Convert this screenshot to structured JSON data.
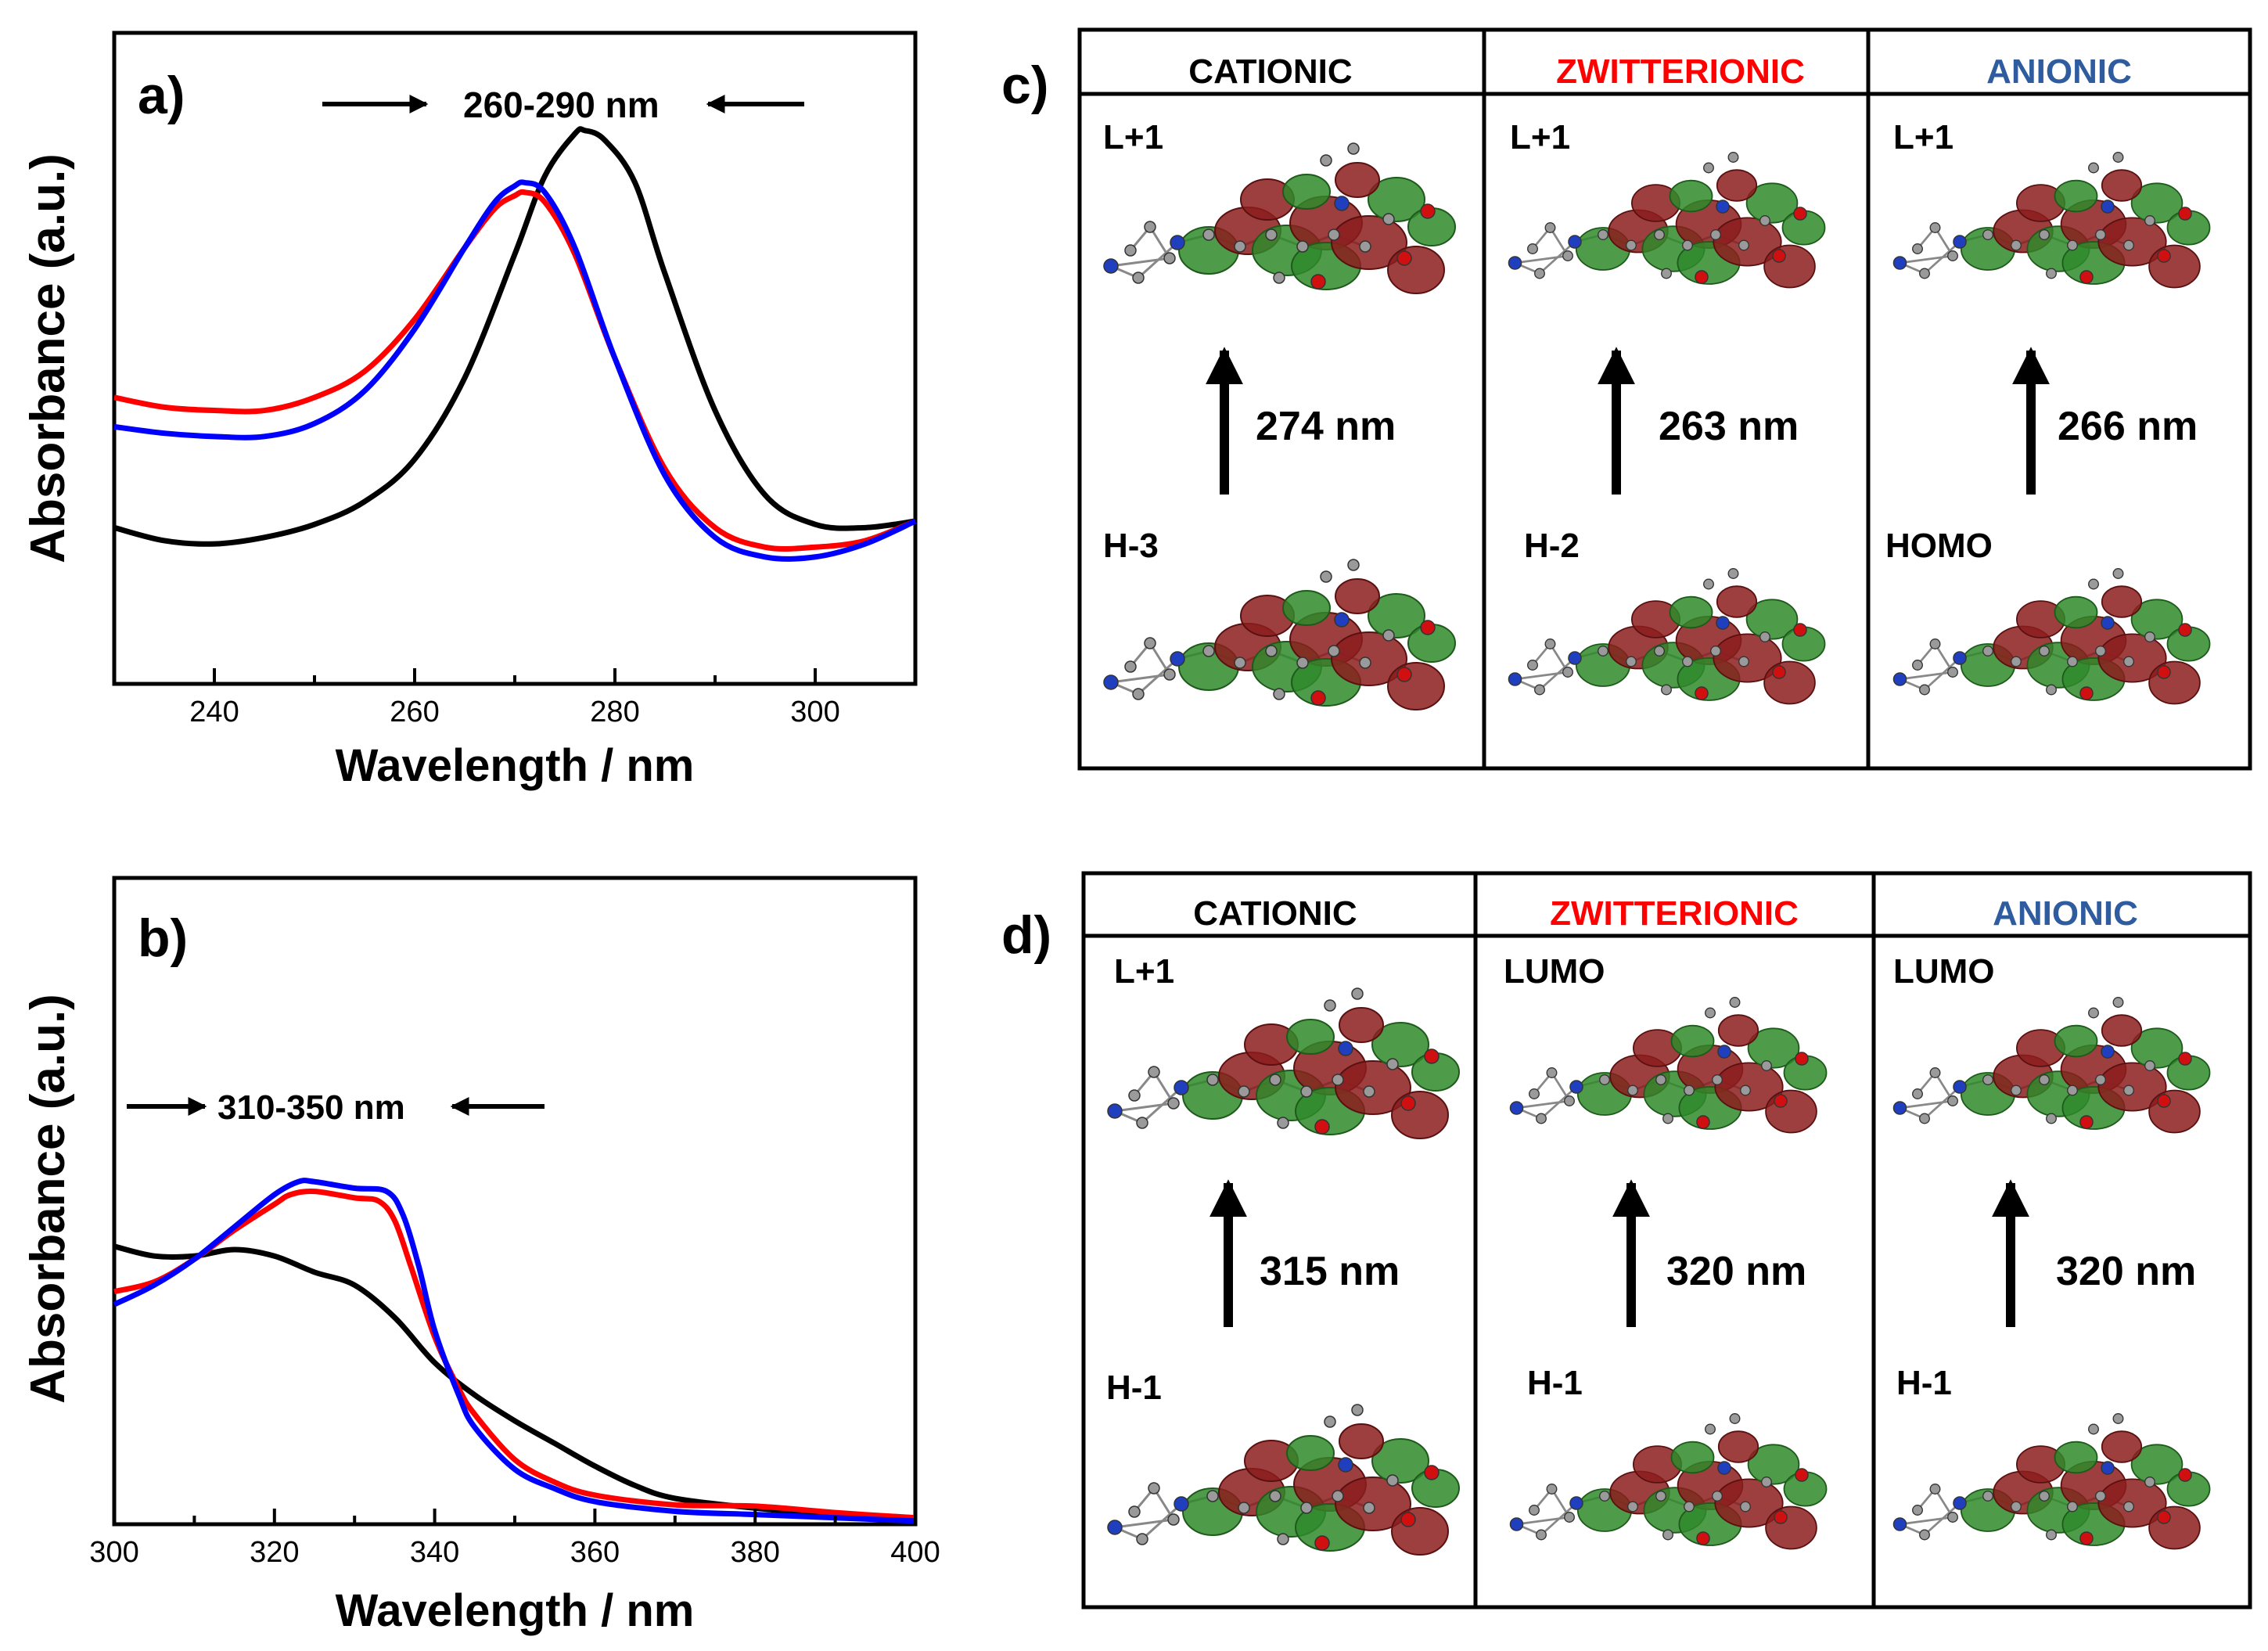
{
  "chart_data": [
    {
      "panel": "a)",
      "type": "line",
      "title": "",
      "annotation": "260-290 nm",
      "xlabel": "Wavelength / nm",
      "ylabel": "Absorbance (a.u.)",
      "xlim": [
        230,
        310
      ],
      "ylim": [
        0,
        1
      ],
      "xticks": [
        240,
        260,
        280,
        300
      ],
      "yticks_shown": false,
      "grid": false,
      "legend": "none",
      "series": [
        {
          "name": "black",
          "color": "#000000",
          "x": [
            230,
            235,
            240,
            245,
            250,
            255,
            260,
            265,
            270,
            273,
            276,
            277,
            279,
            282,
            285,
            290,
            295,
            300,
            305,
            310
          ],
          "y": [
            0.24,
            0.22,
            0.215,
            0.225,
            0.245,
            0.28,
            0.345,
            0.47,
            0.66,
            0.78,
            0.845,
            0.85,
            0.835,
            0.77,
            0.63,
            0.42,
            0.29,
            0.245,
            0.24,
            0.25
          ]
        },
        {
          "name": "red",
          "color": "#ff0000",
          "x": [
            230,
            235,
            240,
            245,
            250,
            255,
            260,
            265,
            268,
            270,
            271,
            273,
            276,
            280,
            285,
            290,
            295,
            300,
            305,
            310
          ],
          "y": [
            0.44,
            0.425,
            0.42,
            0.42,
            0.44,
            0.48,
            0.56,
            0.67,
            0.73,
            0.75,
            0.755,
            0.74,
            0.66,
            0.5,
            0.33,
            0.24,
            0.21,
            0.21,
            0.22,
            0.25
          ]
        },
        {
          "name": "blue",
          "color": "#0000ff",
          "x": [
            230,
            235,
            240,
            245,
            250,
            255,
            260,
            265,
            268,
            270,
            271,
            273,
            276,
            280,
            285,
            290,
            295,
            300,
            305,
            310
          ],
          "y": [
            0.395,
            0.385,
            0.38,
            0.38,
            0.4,
            0.45,
            0.545,
            0.67,
            0.74,
            0.765,
            0.77,
            0.755,
            0.67,
            0.5,
            0.32,
            0.225,
            0.195,
            0.195,
            0.215,
            0.25
          ]
        }
      ]
    },
    {
      "panel": "b)",
      "type": "line",
      "title": "",
      "annotation": "310-350 nm",
      "xlabel": "Wavelength / nm",
      "ylabel": "Absorbance (a.u.)",
      "xlim": [
        300,
        400
      ],
      "ylim": [
        0,
        1
      ],
      "xticks": [
        300,
        320,
        340,
        360,
        380,
        400
      ],
      "yticks_shown": false,
      "grid": false,
      "legend": "none",
      "series": [
        {
          "name": "black",
          "color": "#000000",
          "x": [
            300,
            305,
            310,
            315,
            320,
            325,
            330,
            335,
            340,
            345,
            350,
            355,
            360,
            365,
            370,
            380,
            390,
            400
          ],
          "y": [
            0.43,
            0.415,
            0.415,
            0.425,
            0.415,
            0.39,
            0.37,
            0.32,
            0.25,
            0.2,
            0.16,
            0.125,
            0.09,
            0.06,
            0.04,
            0.025,
            0.015,
            0.01
          ]
        },
        {
          "name": "red",
          "color": "#ff0000",
          "x": [
            300,
            305,
            310,
            315,
            320,
            322,
            325,
            330,
            333,
            335,
            337,
            340,
            343,
            345,
            350,
            355,
            360,
            370,
            380,
            390,
            400
          ],
          "y": [
            0.36,
            0.375,
            0.41,
            0.455,
            0.495,
            0.51,
            0.515,
            0.505,
            0.5,
            0.47,
            0.4,
            0.29,
            0.21,
            0.17,
            0.1,
            0.065,
            0.045,
            0.03,
            0.028,
            0.018,
            0.01
          ]
        },
        {
          "name": "blue",
          "color": "#0000ff",
          "x": [
            300,
            305,
            310,
            315,
            320,
            323,
            325,
            330,
            334,
            336,
            338,
            340,
            343,
            345,
            350,
            355,
            360,
            370,
            380,
            390,
            400
          ],
          "y": [
            0.34,
            0.37,
            0.41,
            0.46,
            0.51,
            0.53,
            0.53,
            0.52,
            0.515,
            0.48,
            0.4,
            0.3,
            0.2,
            0.15,
            0.085,
            0.055,
            0.035,
            0.02,
            0.015,
            0.01,
            0.005
          ]
        }
      ]
    }
  ],
  "panel_c": {
    "label": "c)",
    "columns": [
      {
        "header": "CATIONIC",
        "header_color": "#000000",
        "upper_orbital": "L+1",
        "lower_orbital": "H-3",
        "wavelength": "274 nm"
      },
      {
        "header": "ZWITTERIONIC",
        "header_color": "#ff0000",
        "upper_orbital": "L+1",
        "lower_orbital": "H-2",
        "wavelength": "263 nm"
      },
      {
        "header": "ANIONIC",
        "header_color": "#2e5c9e",
        "upper_orbital": "L+1",
        "lower_orbital": "HOMO",
        "wavelength": "266 nm"
      }
    ]
  },
  "panel_d": {
    "label": "d)",
    "columns": [
      {
        "header": "CATIONIC",
        "header_color": "#000000",
        "upper_orbital": "L+1",
        "lower_orbital": "H-1",
        "wavelength": "315 nm"
      },
      {
        "header": "ZWITTERIONIC",
        "header_color": "#ff0000",
        "upper_orbital": "LUMO",
        "lower_orbital": "H-1",
        "wavelength": "320 nm"
      },
      {
        "header": "ANIONIC",
        "header_color": "#2e5c9e",
        "upper_orbital": "LUMO",
        "lower_orbital": "H-1",
        "wavelength": "320 nm"
      }
    ]
  },
  "icons": [
    "molecular-orbital-icon",
    "transition-arrow-icon",
    "range-arrow-icon"
  ],
  "colors": {
    "lobe_positive": "#2f8a2a",
    "lobe_negative": "#8c1d1d",
    "atom_n": "#1f3fbf",
    "atom_o": "#d01010",
    "atom_c": "#9a9a9a"
  }
}
